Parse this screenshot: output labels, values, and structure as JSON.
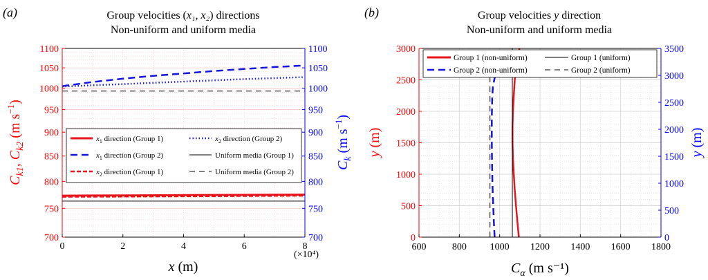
{
  "chart_data": [
    {
      "panel_label": "(a)",
      "type": "line",
      "title_line1_pre": "Group velocities (",
      "title_line1_math": "x₁, x₂",
      "title_line1_post": ") directions",
      "title_line2": "Non-uniform and uniform media",
      "xlabel_main": "x",
      "xlabel_unit": " (m)",
      "x_multiplier": "(×10⁴)",
      "ylabel_left": "C_k1, C_k2 (m s⁻¹)",
      "ylabel_right": "C_k (m s⁻¹)",
      "xlim": [
        0,
        8
      ],
      "ylim": [
        700,
        1100
      ],
      "y_scale": "log",
      "xticks": [
        0,
        2,
        4,
        6,
        8
      ],
      "yticks": [
        700,
        750,
        800,
        850,
        900,
        950,
        1000,
        1050,
        1100
      ],
      "colors": {
        "left_axis": "#ff0000",
        "right_axis": "#0000ff",
        "grid": "#f2c6c6"
      },
      "legend": {
        "position": "center",
        "columns": 2,
        "entries": [
          {
            "pre": "x",
            "sub": "1",
            "post": " direction (Group 1)",
            "color": "#e8141c",
            "dash": "",
            "width": 3
          },
          {
            "pre": "x",
            "sub": "2",
            "post": " direction (Group 2)",
            "color": "#1414e0",
            "dash": "1.5 3",
            "width": 2.5
          },
          {
            "pre": "x",
            "sub": "1",
            "post": " direction (Group 2)",
            "color": "#1414e0",
            "dash": "10 6",
            "width": 2.5
          },
          {
            "pre": "",
            "sub": "",
            "post": "Uniform media (Group 1)",
            "color": "#000000",
            "dash": "",
            "width": 1
          },
          {
            "pre": "x",
            "sub": "2",
            "post": " direction (Group 1)",
            "color": "#e8141c",
            "dash": "6 3",
            "width": 2.5
          },
          {
            "pre": "",
            "sub": "",
            "post": "Uniform media (Group 2)",
            "color": "#000000",
            "dash": "8 6",
            "width": 1
          }
        ]
      },
      "series": [
        {
          "name": "x1 direction (Group 1)",
          "color": "#e8141c",
          "dash": "",
          "width": 3,
          "x": [
            0,
            2,
            4,
            6,
            8
          ],
          "y": [
            773,
            773.5,
            774,
            774.5,
            775
          ]
        },
        {
          "name": "x2 direction (Group 1)",
          "color": "#e8141c",
          "dash": "6 3",
          "width": 2.5,
          "x": [
            0,
            2,
            4,
            6,
            8
          ],
          "y": [
            771,
            771.5,
            772,
            772.5,
            773
          ]
        },
        {
          "name": "x1 direction (Group 2)",
          "color": "#1414e0",
          "dash": "10 6",
          "width": 2.5,
          "x": [
            0,
            1,
            2,
            3,
            4,
            5,
            6,
            7,
            8
          ],
          "y": [
            1005,
            1015,
            1023,
            1030,
            1036,
            1042,
            1047,
            1052,
            1056
          ]
        },
        {
          "name": "x2 direction (Group 2)",
          "color": "#1414e0",
          "dash": "1.5 3",
          "width": 2.5,
          "x": [
            0,
            2,
            4,
            6,
            8
          ],
          "y": [
            1004,
            1010,
            1016,
            1022,
            1027
          ]
        },
        {
          "name": "Uniform media (Group 1)",
          "color": "#000000",
          "dash": "",
          "width": 1,
          "x": [
            0,
            8
          ],
          "y": [
            763,
            763
          ]
        },
        {
          "name": "Uniform media (Group 2)",
          "color": "#000000",
          "dash": "8 6",
          "width": 1,
          "x": [
            0,
            8
          ],
          "y": [
            993,
            993
          ]
        }
      ]
    },
    {
      "panel_label": "(b)",
      "type": "line",
      "title_line1_pre": "Group velocities ",
      "title_line1_math": "y",
      "title_line1_post": " direction",
      "title_line2": "Non-uniform and uniform media",
      "xlabel_main": "C",
      "xlabel_sub": "α",
      "xlabel_unit": " (m s⁻¹)",
      "ylabel_left": "y (m)",
      "ylabel_right": "y (m)",
      "xlim": [
        600,
        1800
      ],
      "ylim_left": [
        0,
        3000
      ],
      "ylim_right": [
        0,
        3500
      ],
      "xticks": [
        600,
        800,
        1000,
        1200,
        1400,
        1600,
        1800
      ],
      "yticks_left": [
        0,
        500,
        1000,
        1500,
        2000,
        2500,
        3000
      ],
      "yticks_right": [
        0,
        500,
        1000,
        1500,
        2000,
        2500,
        3000,
        3500
      ],
      "colors": {
        "left_axis": "#ff0000",
        "right_axis": "#0000ff",
        "grid": "#d8d8d8"
      },
      "legend": {
        "position": "top",
        "columns": 2,
        "entries": [
          {
            "pre": "",
            "sub": "",
            "post": "Group 1 (non-uniform)",
            "color": "#e8141c",
            "dash": "",
            "width": 3
          },
          {
            "pre": "",
            "sub": "",
            "post": "Group 1 (uniform)",
            "color": "#000000",
            "dash": "",
            "width": 1
          },
          {
            "pre": "",
            "sub": "",
            "post": "Group 2 (non-uniform)",
            "color": "#1414e0",
            "dash": "10 6",
            "width": 2.5
          },
          {
            "pre": "",
            "sub": "",
            "post": "Group 2 (uniform)",
            "color": "#000000",
            "dash": "8 6",
            "width": 1
          }
        ]
      },
      "series": [
        {
          "name": "Group 1 (non-uniform)",
          "axis": "left",
          "color": "#e8141c",
          "dash": "",
          "width": 2.5,
          "x": [
            1095,
            1088,
            1081,
            1075,
            1070,
            1066,
            1064,
            1064,
            1066,
            1070,
            1075,
            1082,
            1090,
            1098
          ],
          "y": [
            0,
            250,
            500,
            750,
            1000,
            1250,
            1500,
            1750,
            2000,
            2250,
            2500,
            2700,
            2850,
            3000
          ]
        },
        {
          "name": "Group 1 (uniform)",
          "axis": "left",
          "color": "#000000",
          "dash": "",
          "width": 1,
          "x": [
            1063,
            1063
          ],
          "y": [
            0,
            3000
          ]
        },
        {
          "name": "Group 2 (non-uniform)",
          "axis": "right",
          "color": "#1414e0",
          "dash": "10 6",
          "width": 2.5,
          "x": [
            975,
            971,
            967,
            964,
            962,
            961,
            961,
            963,
            967,
            975,
            990
          ],
          "y": [
            0,
            300,
            700,
            1000,
            1400,
            1800,
            2200,
            2600,
            2800,
            2950,
            3050
          ]
        },
        {
          "name": "Group 2 (uniform)",
          "axis": "right",
          "color": "#000000",
          "dash": "8 6",
          "width": 1,
          "x": [
            952,
            952
          ],
          "y": [
            0,
            2980
          ]
        }
      ]
    }
  ]
}
